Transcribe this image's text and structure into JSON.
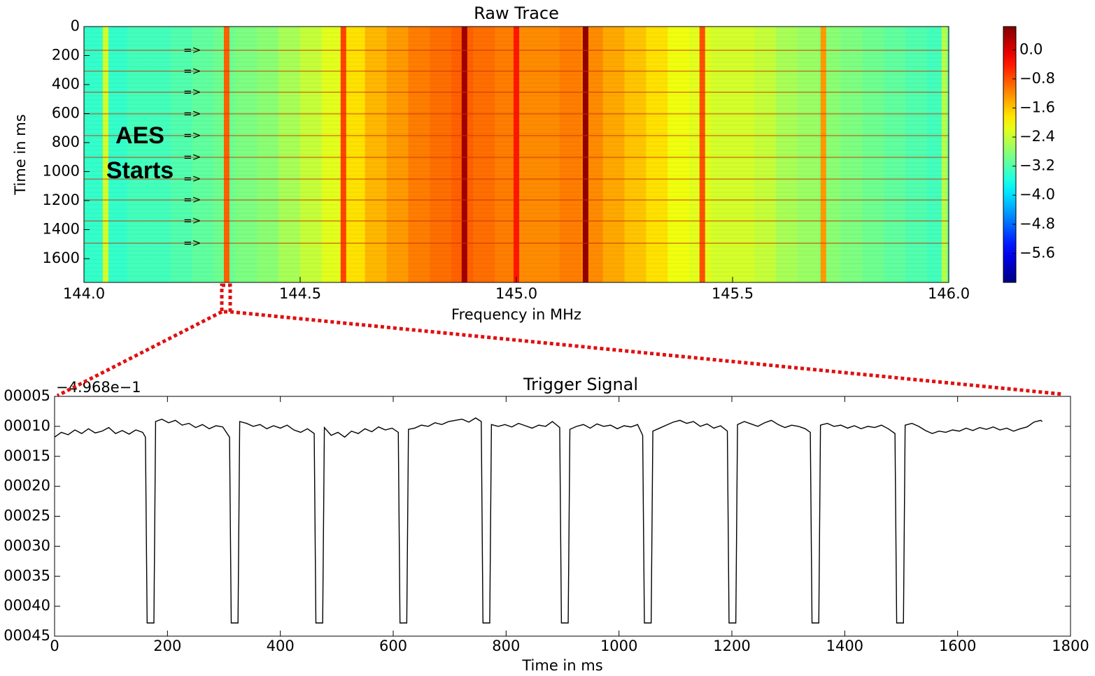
{
  "chart_data": [
    {
      "type": "heatmap",
      "title": "Raw Trace",
      "xlabel": "Frequency in MHz",
      "ylabel": "Time in ms",
      "xlim": [
        144.0,
        146.0
      ],
      "ylim": [
        0,
        1764
      ],
      "invert_y": true,
      "xticks": [
        {
          "value": 144,
          "label": "144.0"
        },
        144.5,
        {
          "value": 145,
          "label": "145.0"
        },
        145.5,
        {
          "value": 146,
          "label": "146.0"
        }
      ],
      "yticks": [
        0,
        200,
        400,
        600,
        800,
        1000,
        1200,
        1400,
        1600
      ],
      "colormap": "jet",
      "clim": [
        -6.4,
        0.64
      ],
      "colorbar_ticks": [
        {
          "value": 0,
          "label": "0.0"
        },
        {
          "value": -0.8,
          "label": "−0.8"
        },
        {
          "value": -1.6,
          "label": "−1.6"
        },
        {
          "value": -2.4,
          "label": "−2.4"
        },
        {
          "value": -3.2,
          "label": "−3.2"
        },
        {
          "value": -4.0,
          "label": "−4.0"
        },
        {
          "value": -4.8,
          "label": "−4.8"
        },
        {
          "value": -5.6,
          "label": "−5.6"
        }
      ],
      "x": [
        144.025,
        144.075,
        144.125,
        144.175,
        144.225,
        144.275,
        144.325,
        144.375,
        144.425,
        144.475,
        144.525,
        144.575,
        144.625,
        144.675,
        144.725,
        144.775,
        144.825,
        144.875,
        144.925,
        144.975,
        145.025,
        145.075,
        145.125,
        145.175,
        145.225,
        145.275,
        145.325,
        145.375,
        145.425,
        145.475,
        145.525,
        145.575,
        145.625,
        145.675,
        145.725,
        145.775,
        145.825,
        145.875,
        145.925,
        145.975
      ],
      "values": [
        -3.4,
        -3.4,
        -3.3,
        -3.3,
        -3.2,
        -3.1,
        -3.0,
        -2.9,
        -2.8,
        -2.6,
        -2.4,
        -2.2,
        -1.8,
        -1.5,
        -1.3,
        -1.1,
        -1.0,
        -0.9,
        -1.0,
        -1.1,
        -1.2,
        -1.2,
        -1.1,
        -1.2,
        -1.4,
        -1.6,
        -1.8,
        -2.1,
        -2.2,
        -2.3,
        -2.3,
        -2.4,
        -2.6,
        -2.7,
        -2.8,
        -2.9,
        -3.0,
        -3.1,
        -3.2,
        -3.3
      ],
      "lines_x": [
        144.05,
        144.33,
        144.6,
        144.88,
        145.0,
        145.16,
        145.43,
        145.71,
        145.99
      ],
      "lines_values": [
        -2.3,
        -0.9,
        -0.7,
        0.4,
        -0.4,
        0.5,
        -0.8,
        -1.3,
        -2.5
      ],
      "events": [
        164,
        308,
        453,
        602,
        752,
        901,
        1051,
        1195,
        1340,
        1494
      ],
      "event_label": "=>",
      "annotation": [
        "AES",
        "Starts"
      ]
    },
    {
      "type": "line",
      "title": "Trigger Signal",
      "xlabel": "Time in ms",
      "offset_label": "−4.968e−1",
      "xlim": [
        0,
        1800
      ],
      "xticks": [
        0,
        200,
        400,
        600,
        800,
        1000,
        1200,
        1400,
        1600,
        1800
      ],
      "ylim": [
        -0.00045,
        -5e-05
      ],
      "yticks": [
        {
          "value": -5e-05,
          "label": "00005"
        },
        {
          "value": -0.0001,
          "label": "00010"
        },
        {
          "value": -0.00015,
          "label": "00015"
        },
        {
          "value": -0.0002,
          "label": "00020"
        },
        {
          "value": -0.00025,
          "label": "00025"
        },
        {
          "value": -0.0003,
          "label": "00030"
        },
        {
          "value": -0.00035,
          "label": "00035"
        },
        {
          "value": -0.0004,
          "label": "00040"
        },
        {
          "value": -0.00045,
          "label": "00045"
        }
      ],
      "series": [
        {
          "color": "#000000",
          "x": [
            0,
            12,
            24,
            36,
            48,
            60,
            72,
            84,
            96,
            108,
            120,
            132,
            144,
            156,
            161,
            164,
            176,
            179,
            190,
            202,
            214,
            226,
            238,
            250,
            262,
            274,
            286,
            298,
            310,
            313,
            325,
            328,
            340,
            352,
            364,
            376,
            388,
            400,
            412,
            424,
            436,
            448,
            460,
            463,
            475,
            478,
            490,
            502,
            514,
            526,
            538,
            550,
            562,
            574,
            586,
            598,
            609,
            612,
            624,
            627,
            638,
            650,
            662,
            674,
            686,
            698,
            710,
            722,
            734,
            746,
            756,
            759,
            771,
            774,
            786,
            798,
            810,
            822,
            834,
            846,
            858,
            870,
            882,
            895,
            898,
            910,
            913,
            925,
            937,
            949,
            961,
            973,
            985,
            997,
            1009,
            1021,
            1033,
            1042,
            1045,
            1057,
            1060,
            1072,
            1084,
            1096,
            1108,
            1120,
            1132,
            1144,
            1156,
            1168,
            1180,
            1192,
            1195,
            1207,
            1210,
            1222,
            1234,
            1246,
            1258,
            1270,
            1282,
            1294,
            1306,
            1318,
            1330,
            1339,
            1342,
            1354,
            1357,
            1369,
            1381,
            1393,
            1405,
            1417,
            1429,
            1441,
            1453,
            1465,
            1477,
            1489,
            1492,
            1504,
            1507,
            1519,
            1531,
            1543,
            1555,
            1567,
            1579,
            1591,
            1603,
            1615,
            1627,
            1639,
            1651,
            1663,
            1675,
            1687,
            1699,
            1711,
            1723,
            1735,
            1747,
            1750
          ],
          "values": [
            -0.000118,
            -0.00011,
            -0.000114,
            -0.000106,
            -0.000112,
            -0.000104,
            -0.000111,
            -0.000108,
            -0.000102,
            -0.000112,
            -0.000107,
            -0.000113,
            -0.000106,
            -0.00011,
            -0.000118,
            -0.000428,
            -0.000428,
            -9.2e-05,
            -8.8e-05,
            -9.4e-05,
            -9e-05,
            -9.8e-05,
            -9.5e-05,
            -0.000102,
            -9.7e-05,
            -0.000104,
            -9.9e-05,
            -0.000101,
            -0.000118,
            -0.000428,
            -0.000428,
            -9.2e-05,
            -9.5e-05,
            -0.0001,
            -9.7e-05,
            -0.000104,
            -9.9e-05,
            -0.000103,
            -9.8e-05,
            -0.000106,
            -0.00011,
            -0.000104,
            -0.000112,
            -0.000428,
            -0.000428,
            -0.000102,
            -0.000115,
            -0.00011,
            -0.000118,
            -0.000108,
            -0.000112,
            -0.000104,
            -0.000109,
            -0.000101,
            -0.000106,
            -0.000103,
            -0.00011,
            -0.000428,
            -0.000428,
            -0.000105,
            -0.000103,
            -9.8e-05,
            -0.0001,
            -9.4e-05,
            -9.7e-05,
            -9.2e-05,
            -9e-05,
            -8.8e-05,
            -9.3e-05,
            -8.6e-05,
            -9.2e-05,
            -0.000428,
            -0.000428,
            -9.7e-05,
            -0.0001,
            -9.7e-05,
            -0.000101,
            -9.5e-05,
            -9.9e-05,
            -0.000103,
            -9.8e-05,
            -0.0001,
            -9.2e-05,
            -0.000102,
            -0.000428,
            -0.000428,
            -0.000105,
            -0.0001,
            -9.7e-05,
            -0.000103,
            -9.6e-05,
            -0.0001,
            -9.8e-05,
            -0.000104,
            -9.9e-05,
            -0.000101,
            -9.7e-05,
            -0.000115,
            -0.000428,
            -0.000428,
            -0.000108,
            -0.000103,
            -9.8e-05,
            -9.3e-05,
            -9e-05,
            -9.5e-05,
            -9.2e-05,
            -0.0001,
            -9.6e-05,
            -0.000103,
            -9.9e-05,
            -0.000108,
            -0.000428,
            -0.000428,
            -9.7e-05,
            -9.2e-05,
            -9.6e-05,
            -0.0001,
            -9.4e-05,
            -9e-05,
            -9.7e-05,
            -0.000102,
            -9.8e-05,
            -0.0001,
            -0.000104,
            -0.00011,
            -0.000428,
            -0.000428,
            -9.8e-05,
            -9.5e-05,
            -0.0001,
            -9.8e-05,
            -0.000103,
            -9.9e-05,
            -0.000104,
            -0.0001,
            -0.000102,
            -9.8e-05,
            -0.000104,
            -0.000112,
            -0.000428,
            -0.000428,
            -9.8e-05,
            -9.5e-05,
            -0.0001,
            -0.000107,
            -0.000112,
            -0.000108,
            -0.00011,
            -0.000106,
            -0.000108,
            -0.000103,
            -0.000107,
            -0.000102,
            -0.000105,
            -0.000101,
            -0.000106,
            -0.000103,
            -0.000108,
            -0.000104,
            -0.000101,
            -9.3e-05,
            -9e-05,
            -9.2e-05
          ]
        }
      ]
    }
  ]
}
